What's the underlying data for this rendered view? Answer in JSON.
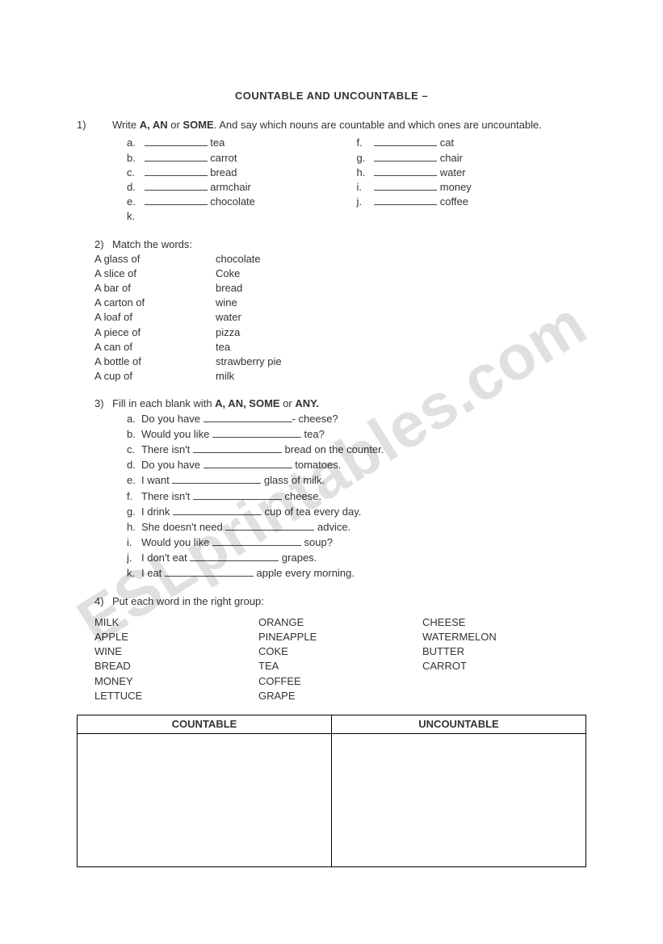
{
  "title": "COUNTABLE AND UNCOUNTABLE –",
  "watermark": "ESLprintables.com",
  "q1": {
    "number": "1)",
    "instr_parts": [
      "Write ",
      "A, AN",
      " or ",
      "SOME",
      ". And say which nouns are countable and which ones are uncountable."
    ],
    "left": [
      {
        "l": "a.",
        "w": "tea"
      },
      {
        "l": "b.",
        "w": "carrot"
      },
      {
        "l": "c.",
        "w": "bread"
      },
      {
        "l": "d.",
        "w": "armchair"
      },
      {
        "l": "e.",
        "w": "chocolate"
      },
      {
        "l": "k.",
        "w": ""
      }
    ],
    "right": [
      {
        "l": "f.",
        "w": "cat"
      },
      {
        "l": "g.",
        "w": "chair"
      },
      {
        "l": "h.",
        "w": "water"
      },
      {
        "l": "i.",
        "w": "money"
      },
      {
        "l": "j.",
        "w": "coffee"
      }
    ]
  },
  "q2": {
    "number": "2)",
    "instr": "Match the words:",
    "rows": [
      {
        "l": "A glass of",
        "r": "chocolate"
      },
      {
        "l": "A slice of",
        "r": "Coke"
      },
      {
        "l": "A bar of",
        "r": "bread"
      },
      {
        "l": "A carton of",
        "r": "wine"
      },
      {
        "l": "A loaf of",
        "r": "water"
      },
      {
        "l": "A piece of",
        "r": "pizza"
      },
      {
        "l": "A can of",
        "r": "tea"
      },
      {
        "l": "A bottle of",
        "r": "strawberry pie"
      },
      {
        "l": "A cup of",
        "r": "milk"
      }
    ]
  },
  "q3": {
    "number": "3)",
    "instr_parts": [
      "Fill in each blank with ",
      "A, AN, SOME",
      " or ",
      "ANY."
    ],
    "items": [
      {
        "l": "a.",
        "pre": "Do you have ",
        "post": "- cheese?"
      },
      {
        "l": "b.",
        "pre": "Would you like ",
        "post": " tea?"
      },
      {
        "l": "c.",
        "pre": "There isn't ",
        "post": " bread on the counter."
      },
      {
        "l": "d.",
        "pre": "Do you have ",
        "post": " tomatoes."
      },
      {
        "l": "e.",
        "pre": "I want ",
        "post": " glass of milk."
      },
      {
        "l": "f.",
        "pre": "There isn't ",
        "post": " cheese."
      },
      {
        "l": "g.",
        "pre": "I drink ",
        "post": " cup of tea every day."
      },
      {
        "l": "h.",
        "pre": "She doesn't need ",
        "post": " advice."
      },
      {
        "l": "i.",
        "pre": "Would you like ",
        "post": " soup?"
      },
      {
        "l": "j.",
        "pre": "I don't eat ",
        "post": " grapes."
      },
      {
        "l": "k.",
        "pre": "I eat ",
        "post": " apple every morning."
      }
    ]
  },
  "q4": {
    "number": "4)",
    "instr": "Put each word in the right group:",
    "cols": [
      [
        "MILK",
        "APPLE",
        "WINE",
        "BREAD",
        "MONEY",
        "LETTUCE"
      ],
      [
        "ORANGE",
        "PINEAPPLE",
        "COKE",
        "TEA",
        "COFFEE",
        "GRAPE"
      ],
      [
        "CHEESE",
        "WATERMELON",
        "BUTTER",
        "CARROT"
      ]
    ],
    "headers": [
      "COUNTABLE",
      "UNCOUNTABLE"
    ]
  }
}
